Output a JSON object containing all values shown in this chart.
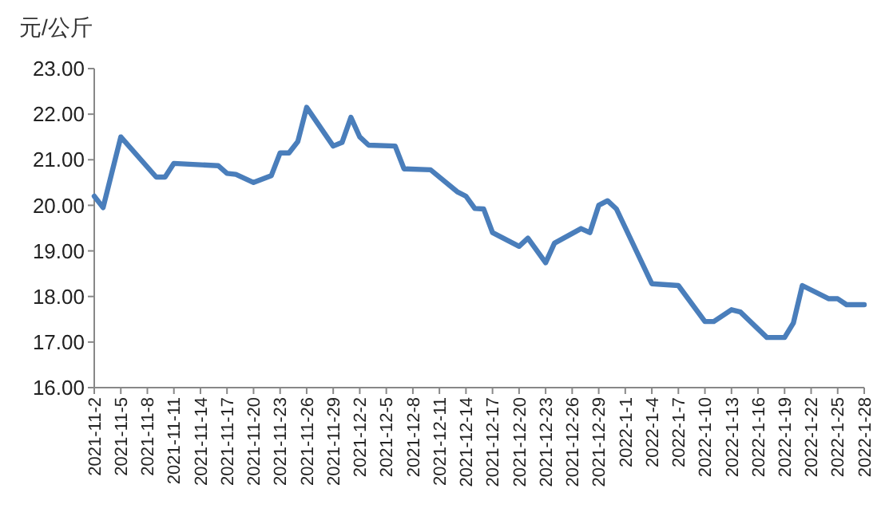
{
  "chart_data": {
    "type": "line",
    "ylabel": "元/公斤",
    "x": [
      "2021-11-02",
      "2021-11-03",
      "2021-11-05",
      "2021-11-09",
      "2021-11-10",
      "2021-11-11",
      "2021-11-16",
      "2021-11-17",
      "2021-11-18",
      "2021-11-20",
      "2021-11-22",
      "2021-11-23",
      "2021-11-24",
      "2021-11-25",
      "2021-11-26",
      "2021-11-29",
      "2021-11-30",
      "2021-12-01",
      "2021-12-02",
      "2021-12-03",
      "2021-12-06",
      "2021-12-07",
      "2021-12-10",
      "2021-12-13",
      "2021-12-14",
      "2021-12-15",
      "2021-12-16",
      "2021-12-17",
      "2021-12-20",
      "2021-12-21",
      "2021-12-23",
      "2021-12-24",
      "2021-12-27",
      "2021-12-28",
      "2021-12-29",
      "2021-12-30",
      "2021-12-31",
      "2022-01-04",
      "2022-01-07",
      "2022-01-10",
      "2022-01-11",
      "2022-01-13",
      "2022-01-14",
      "2022-01-17",
      "2022-01-19",
      "2022-01-20",
      "2022-01-21",
      "2022-01-24",
      "2022-01-25",
      "2022-01-26",
      "2022-01-28"
    ],
    "series": [
      {
        "color": "#4a7ebb",
        "values": [
          20.2,
          19.95,
          21.5,
          20.62,
          20.62,
          20.92,
          20.87,
          20.7,
          20.68,
          20.5,
          20.65,
          21.15,
          21.15,
          21.4,
          22.15,
          21.3,
          21.38,
          21.93,
          21.5,
          21.32,
          21.3,
          20.8,
          20.78,
          20.3,
          20.2,
          19.93,
          19.92,
          19.4,
          19.1,
          19.28,
          18.74,
          19.17,
          19.49,
          19.4,
          20.0,
          20.1,
          19.92,
          18.28,
          18.24,
          17.45,
          17.45,
          17.71,
          17.66,
          17.1,
          17.1,
          17.42,
          18.24,
          17.95,
          17.95,
          17.82,
          17.82
        ]
      }
    ],
    "xlim": [
      "2021-11-02",
      "2022-01-28"
    ],
    "xticks": [
      {
        "value": "2021-11-02",
        "label": "2021-11-2"
      },
      {
        "value": "2021-11-05",
        "label": "2021-11-5"
      },
      {
        "value": "2021-11-08",
        "label": "2021-11-8"
      },
      {
        "value": "2021-11-11",
        "label": "2021-11-11"
      },
      {
        "value": "2021-11-14",
        "label": "2021-11-14"
      },
      {
        "value": "2021-11-17",
        "label": "2021-11-17"
      },
      {
        "value": "2021-11-20",
        "label": "2021-11-20"
      },
      {
        "value": "2021-11-23",
        "label": "2021-11-23"
      },
      {
        "value": "2021-11-26",
        "label": "2021-11-26"
      },
      {
        "value": "2021-11-29",
        "label": "2021-11-29"
      },
      {
        "value": "2021-12-02",
        "label": "2021-12-2"
      },
      {
        "value": "2021-12-05",
        "label": "2021-12-5"
      },
      {
        "value": "2021-12-08",
        "label": "2021-12-8"
      },
      {
        "value": "2021-12-11",
        "label": "2021-12-11"
      },
      {
        "value": "2021-12-14",
        "label": "2021-12-14"
      },
      {
        "value": "2021-12-17",
        "label": "2021-12-17"
      },
      {
        "value": "2021-12-20",
        "label": "2021-12-20"
      },
      {
        "value": "2021-12-23",
        "label": "2021-12-23"
      },
      {
        "value": "2021-12-26",
        "label": "2021-12-26"
      },
      {
        "value": "2021-12-29",
        "label": "2021-12-29"
      },
      {
        "value": "2022-01-01",
        "label": "2022-1-1"
      },
      {
        "value": "2022-01-04",
        "label": "2022-1-4"
      },
      {
        "value": "2022-01-07",
        "label": "2022-1-7"
      },
      {
        "value": "2022-01-10",
        "label": "2022-1-10"
      },
      {
        "value": "2022-01-13",
        "label": "2022-1-13"
      },
      {
        "value": "2022-01-16",
        "label": "2022-1-16"
      },
      {
        "value": "2022-01-19",
        "label": "2022-1-19"
      },
      {
        "value": "2022-01-22",
        "label": "2022-1-22"
      },
      {
        "value": "2022-01-25",
        "label": "2022-1-25"
      },
      {
        "value": "2022-01-28",
        "label": "2022-1-28"
      }
    ],
    "ylim": [
      16,
      23
    ],
    "yticks": [
      {
        "value": 16,
        "label": "16.00"
      },
      {
        "value": 17,
        "label": "17.00"
      },
      {
        "value": 18,
        "label": "18.00"
      },
      {
        "value": 19,
        "label": "19.00"
      },
      {
        "value": 20,
        "label": "20.00"
      },
      {
        "value": 21,
        "label": "21.00"
      },
      {
        "value": 22,
        "label": "22.00"
      },
      {
        "value": 23,
        "label": "23.00"
      }
    ],
    "grid": false,
    "line_style": "solid"
  }
}
